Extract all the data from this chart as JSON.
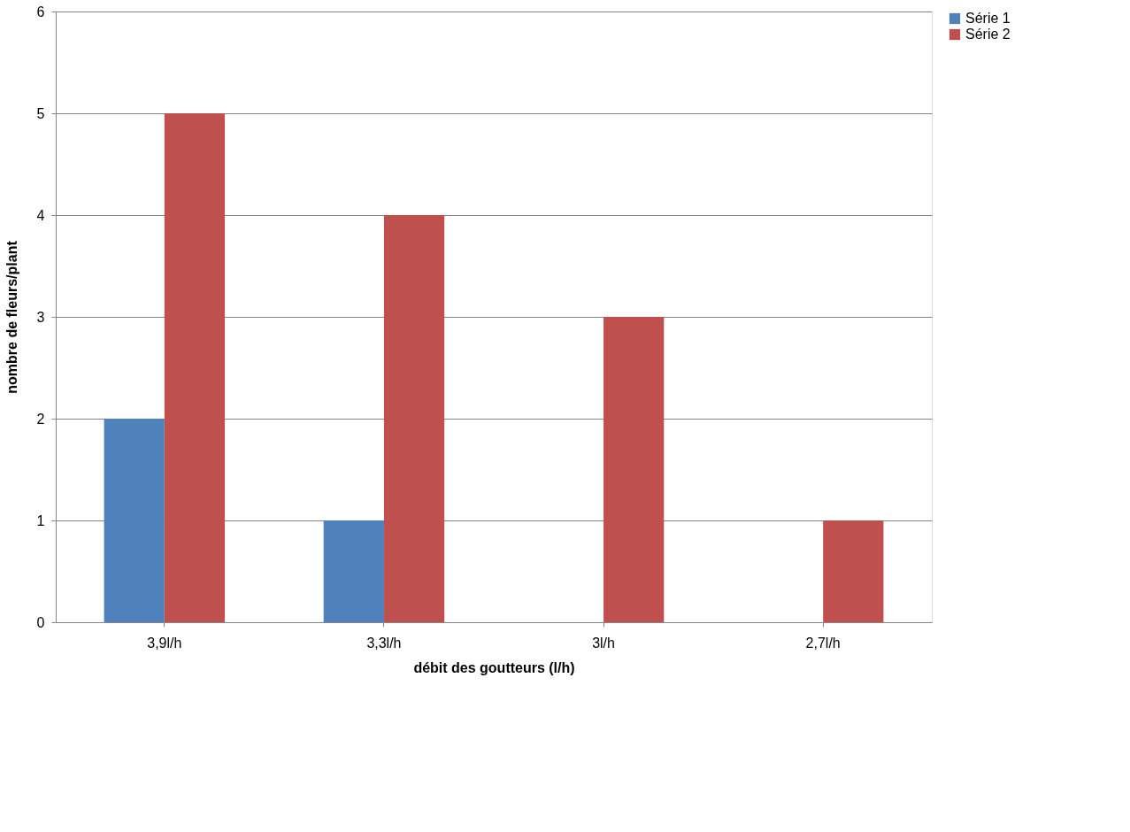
{
  "chart_data": {
    "type": "bar",
    "xlabel": "débit des goutteurs (l/h)",
    "ylabel": "nombre de fleurs/plant",
    "categories": [
      "3,9l/h",
      "3,3l/h",
      "3l/h",
      "2,7l/h"
    ],
    "series": [
      {
        "name": "Série 1",
        "color": "#4f81bd",
        "values": [
          2,
          1,
          0,
          0
        ]
      },
      {
        "name": "Série 2",
        "color": "#c0504d",
        "values": [
          5,
          4,
          3,
          1
        ]
      }
    ],
    "ylim": [
      0,
      6
    ],
    "yticks": [
      0,
      1,
      2,
      3,
      4,
      5,
      6
    ],
    "grid": "y",
    "legend": "right"
  }
}
